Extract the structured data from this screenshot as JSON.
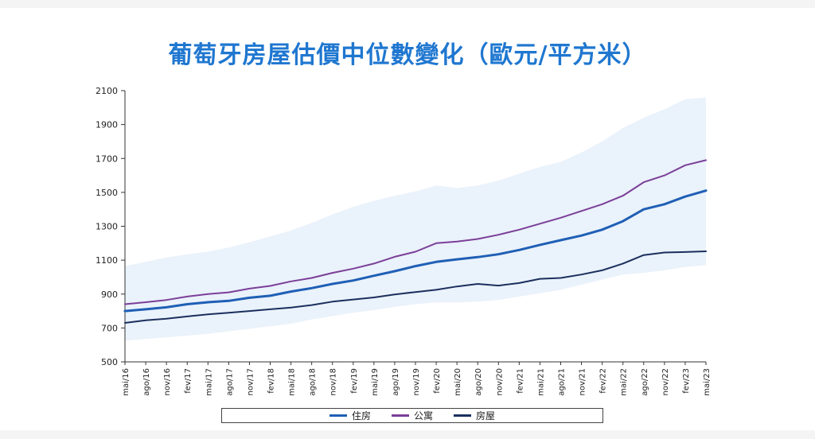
{
  "chart_data": {
    "type": "line",
    "title": "葡萄牙房屋估價中位數變化（歐元/平方米）",
    "xlabel": "",
    "ylabel": "",
    "ylim": [
      500,
      2100
    ],
    "yticks": [
      500,
      700,
      900,
      1100,
      1300,
      1500,
      1700,
      1900,
      2100
    ],
    "grid": false,
    "legend": "bottom",
    "x_tick_labels": [
      "mai/16",
      "ago/16",
      "nov/16",
      "fev/17",
      "mai/17",
      "ago/17",
      "nov/17",
      "fev/18",
      "mai/18",
      "ago/18",
      "nov/18",
      "fev/19",
      "mai/19",
      "ago/19",
      "nov/19",
      "fev/20",
      "mai/20",
      "ago/20",
      "nov/20",
      "fev/21",
      "mai/21",
      "ago/21",
      "nov/21",
      "fev/22",
      "mai/22",
      "ago/22",
      "nov/22",
      "fev/23",
      "mai/23"
    ],
    "band": {
      "upper": [
        1065,
        1090,
        1115,
        1135,
        1150,
        1175,
        1205,
        1240,
        1275,
        1320,
        1370,
        1415,
        1450,
        1480,
        1505,
        1540,
        1525,
        1540,
        1570,
        1610,
        1650,
        1680,
        1735,
        1800,
        1880,
        1940,
        1990,
        2050,
        2060
      ],
      "lower": [
        625,
        635,
        645,
        655,
        665,
        680,
        695,
        710,
        725,
        750,
        770,
        790,
        805,
        825,
        840,
        850,
        850,
        855,
        865,
        885,
        905,
        925,
        955,
        985,
        1015,
        1025,
        1040,
        1060,
        1070
      ],
      "color": "#eaf2fb"
    },
    "series": [
      {
        "name": "住房",
        "color": "#1f5fb5",
        "width": 3,
        "values": [
          800,
          810,
          822,
          840,
          852,
          860,
          878,
          890,
          915,
          935,
          960,
          980,
          1008,
          1035,
          1065,
          1090,
          1105,
          1118,
          1135,
          1160,
          1190,
          1218,
          1245,
          1280,
          1330,
          1400,
          1430,
          1475,
          1510
        ]
      },
      {
        "name": "公寓",
        "color": "#7b3f98",
        "width": 2,
        "values": [
          840,
          852,
          865,
          885,
          900,
          910,
          932,
          948,
          975,
          995,
          1025,
          1050,
          1080,
          1120,
          1150,
          1200,
          1210,
          1225,
          1250,
          1280,
          1315,
          1350,
          1390,
          1430,
          1480,
          1560,
          1600,
          1660,
          1690
        ]
      },
      {
        "name": "房屋",
        "color": "#1b2f5e",
        "width": 2,
        "values": [
          730,
          745,
          755,
          768,
          780,
          790,
          800,
          810,
          820,
          835,
          855,
          868,
          880,
          898,
          912,
          925,
          945,
          960,
          950,
          965,
          990,
          995,
          1015,
          1040,
          1080,
          1130,
          1145,
          1148,
          1152
        ]
      }
    ]
  }
}
